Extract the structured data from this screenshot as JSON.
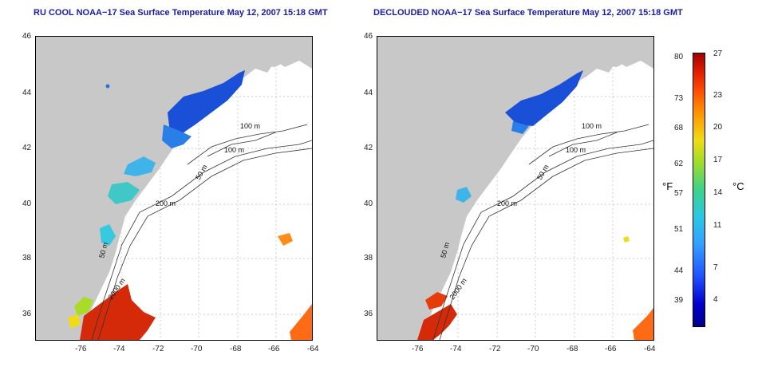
{
  "titles": {
    "left": "RU COOL NOAA−17 Sea Surface Temperature May 12, 2007 15:18 GMT",
    "right": "DECLOUDED NOAA−17 Sea Surface Temperature May 12, 2007 15:18 GMT"
  },
  "axes": {
    "x_ticks": [
      "-76",
      "-74",
      "-72",
      "-70",
      "-68",
      "-66",
      "-64"
    ],
    "y_ticks": [
      "46",
      "44",
      "42",
      "40",
      "38",
      "36"
    ]
  },
  "isobaths": {
    "label_100m": "100 m",
    "label_50m": "50 m",
    "label_200m": "200 m",
    "label_2000m": "2000 m"
  },
  "colorbar": {
    "unit_f": "°F",
    "unit_c": "°C",
    "f_ticks": [
      "80",
      "73",
      "68",
      "62",
      "57",
      "51",
      "44",
      "39"
    ],
    "c_ticks": [
      "27",
      "23",
      "20",
      "17",
      "14",
      "11",
      "7",
      "4"
    ]
  },
  "colors": {
    "land": "#c8c8c8",
    "title": "#1a1aa8",
    "cold": "#1a4fd8",
    "warm": "#d42a0a"
  }
}
